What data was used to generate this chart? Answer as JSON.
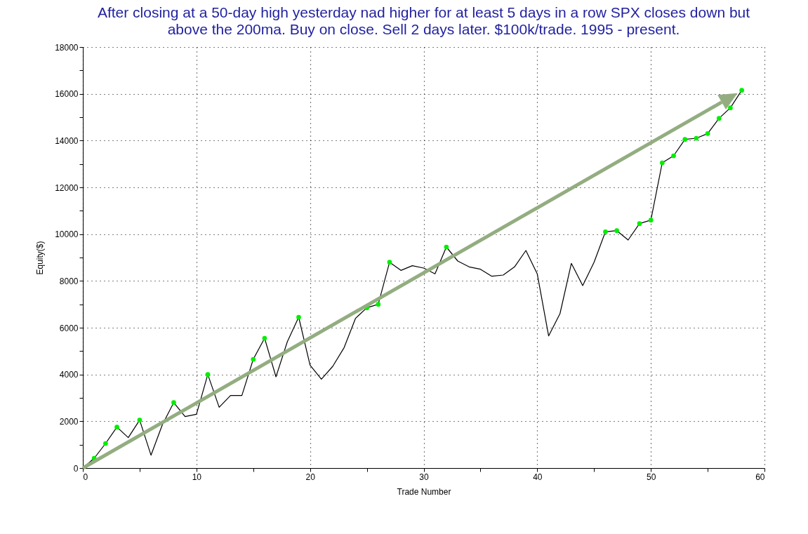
{
  "chart_data": {
    "type": "line",
    "title": "After closing at a 50-day high yesterday nad higher for at least 5 days in a row SPX closes down but above the 200ma. Buy on close. Sell 2 days later. $100k/trade. 1995 - present.",
    "xlabel": "Trade Number",
    "ylabel": "Equity($)",
    "xlim": [
      0,
      60
    ],
    "ylim": [
      0,
      18000
    ],
    "xticks": [
      0,
      {
        "value": 5,
        "label": null
      },
      10,
      {
        "value": 15,
        "label": null
      },
      20,
      {
        "value": 25,
        "label": null
      },
      30,
      {
        "value": 35,
        "label": null
      },
      40,
      {
        "value": 45,
        "label": null
      },
      50,
      {
        "value": 55,
        "label": null
      },
      60
    ],
    "yticks": [
      0,
      {
        "value": 1000,
        "label": null
      },
      2000,
      {
        "value": 3000,
        "label": null
      },
      4000,
      {
        "value": 5000,
        "label": null
      },
      6000,
      {
        "value": 7000,
        "label": null
      },
      8000,
      {
        "value": 9000,
        "label": null
      },
      10000,
      {
        "value": 11000,
        "label": null
      },
      12000,
      {
        "value": 13000,
        "label": null
      },
      14000,
      {
        "value": 15000,
        "label": null
      },
      16000,
      {
        "value": 17000,
        "label": null
      },
      18000
    ],
    "grid": true,
    "series": [
      {
        "type": "line",
        "color": "#000000",
        "x": [
          0,
          1,
          2,
          3,
          4,
          5,
          6,
          7,
          8,
          9,
          10,
          11,
          12,
          13,
          14,
          15,
          16,
          17,
          18,
          19,
          20,
          21,
          22,
          23,
          24,
          25,
          26,
          27,
          28,
          29,
          30,
          31,
          32,
          33,
          34,
          35,
          36,
          37,
          38,
          39,
          40,
          41,
          42,
          43,
          44,
          45,
          46,
          47,
          48,
          49,
          50,
          51,
          52,
          53,
          54,
          55,
          56,
          57,
          58
        ],
        "values": [
          0,
          420,
          1050,
          1750,
          1300,
          2050,
          550,
          1850,
          2800,
          2200,
          2300,
          4000,
          2600,
          3100,
          3100,
          4650,
          5550,
          3900,
          5400,
          6450,
          4400,
          3800,
          4350,
          5150,
          6400,
          6850,
          7000,
          8800,
          8450,
          8650,
          8550,
          8300,
          9450,
          8850,
          8600,
          8500,
          8200,
          8250,
          8600,
          9300,
          8300,
          5650,
          6600,
          8750,
          7800,
          8800,
          10100,
          10150,
          9750,
          10450,
          10600,
          13050,
          13350,
          14050,
          14100,
          14300,
          14950,
          15400,
          16150
        ]
      },
      {
        "type": "scatter",
        "color": "#00ee00",
        "x": [
          1,
          2,
          3,
          5,
          8,
          11,
          15,
          16,
          19,
          25,
          26,
          27,
          32,
          46,
          47,
          49,
          50,
          51,
          52,
          53,
          54,
          55,
          56,
          57,
          58
        ],
        "values": [
          420,
          1050,
          1750,
          2050,
          2800,
          4000,
          4650,
          5550,
          6450,
          6850,
          7000,
          8800,
          9450,
          10100,
          10150,
          10450,
          10600,
          13050,
          13350,
          14050,
          14100,
          14300,
          14950,
          15400,
          16150
        ]
      }
    ]
  }
}
